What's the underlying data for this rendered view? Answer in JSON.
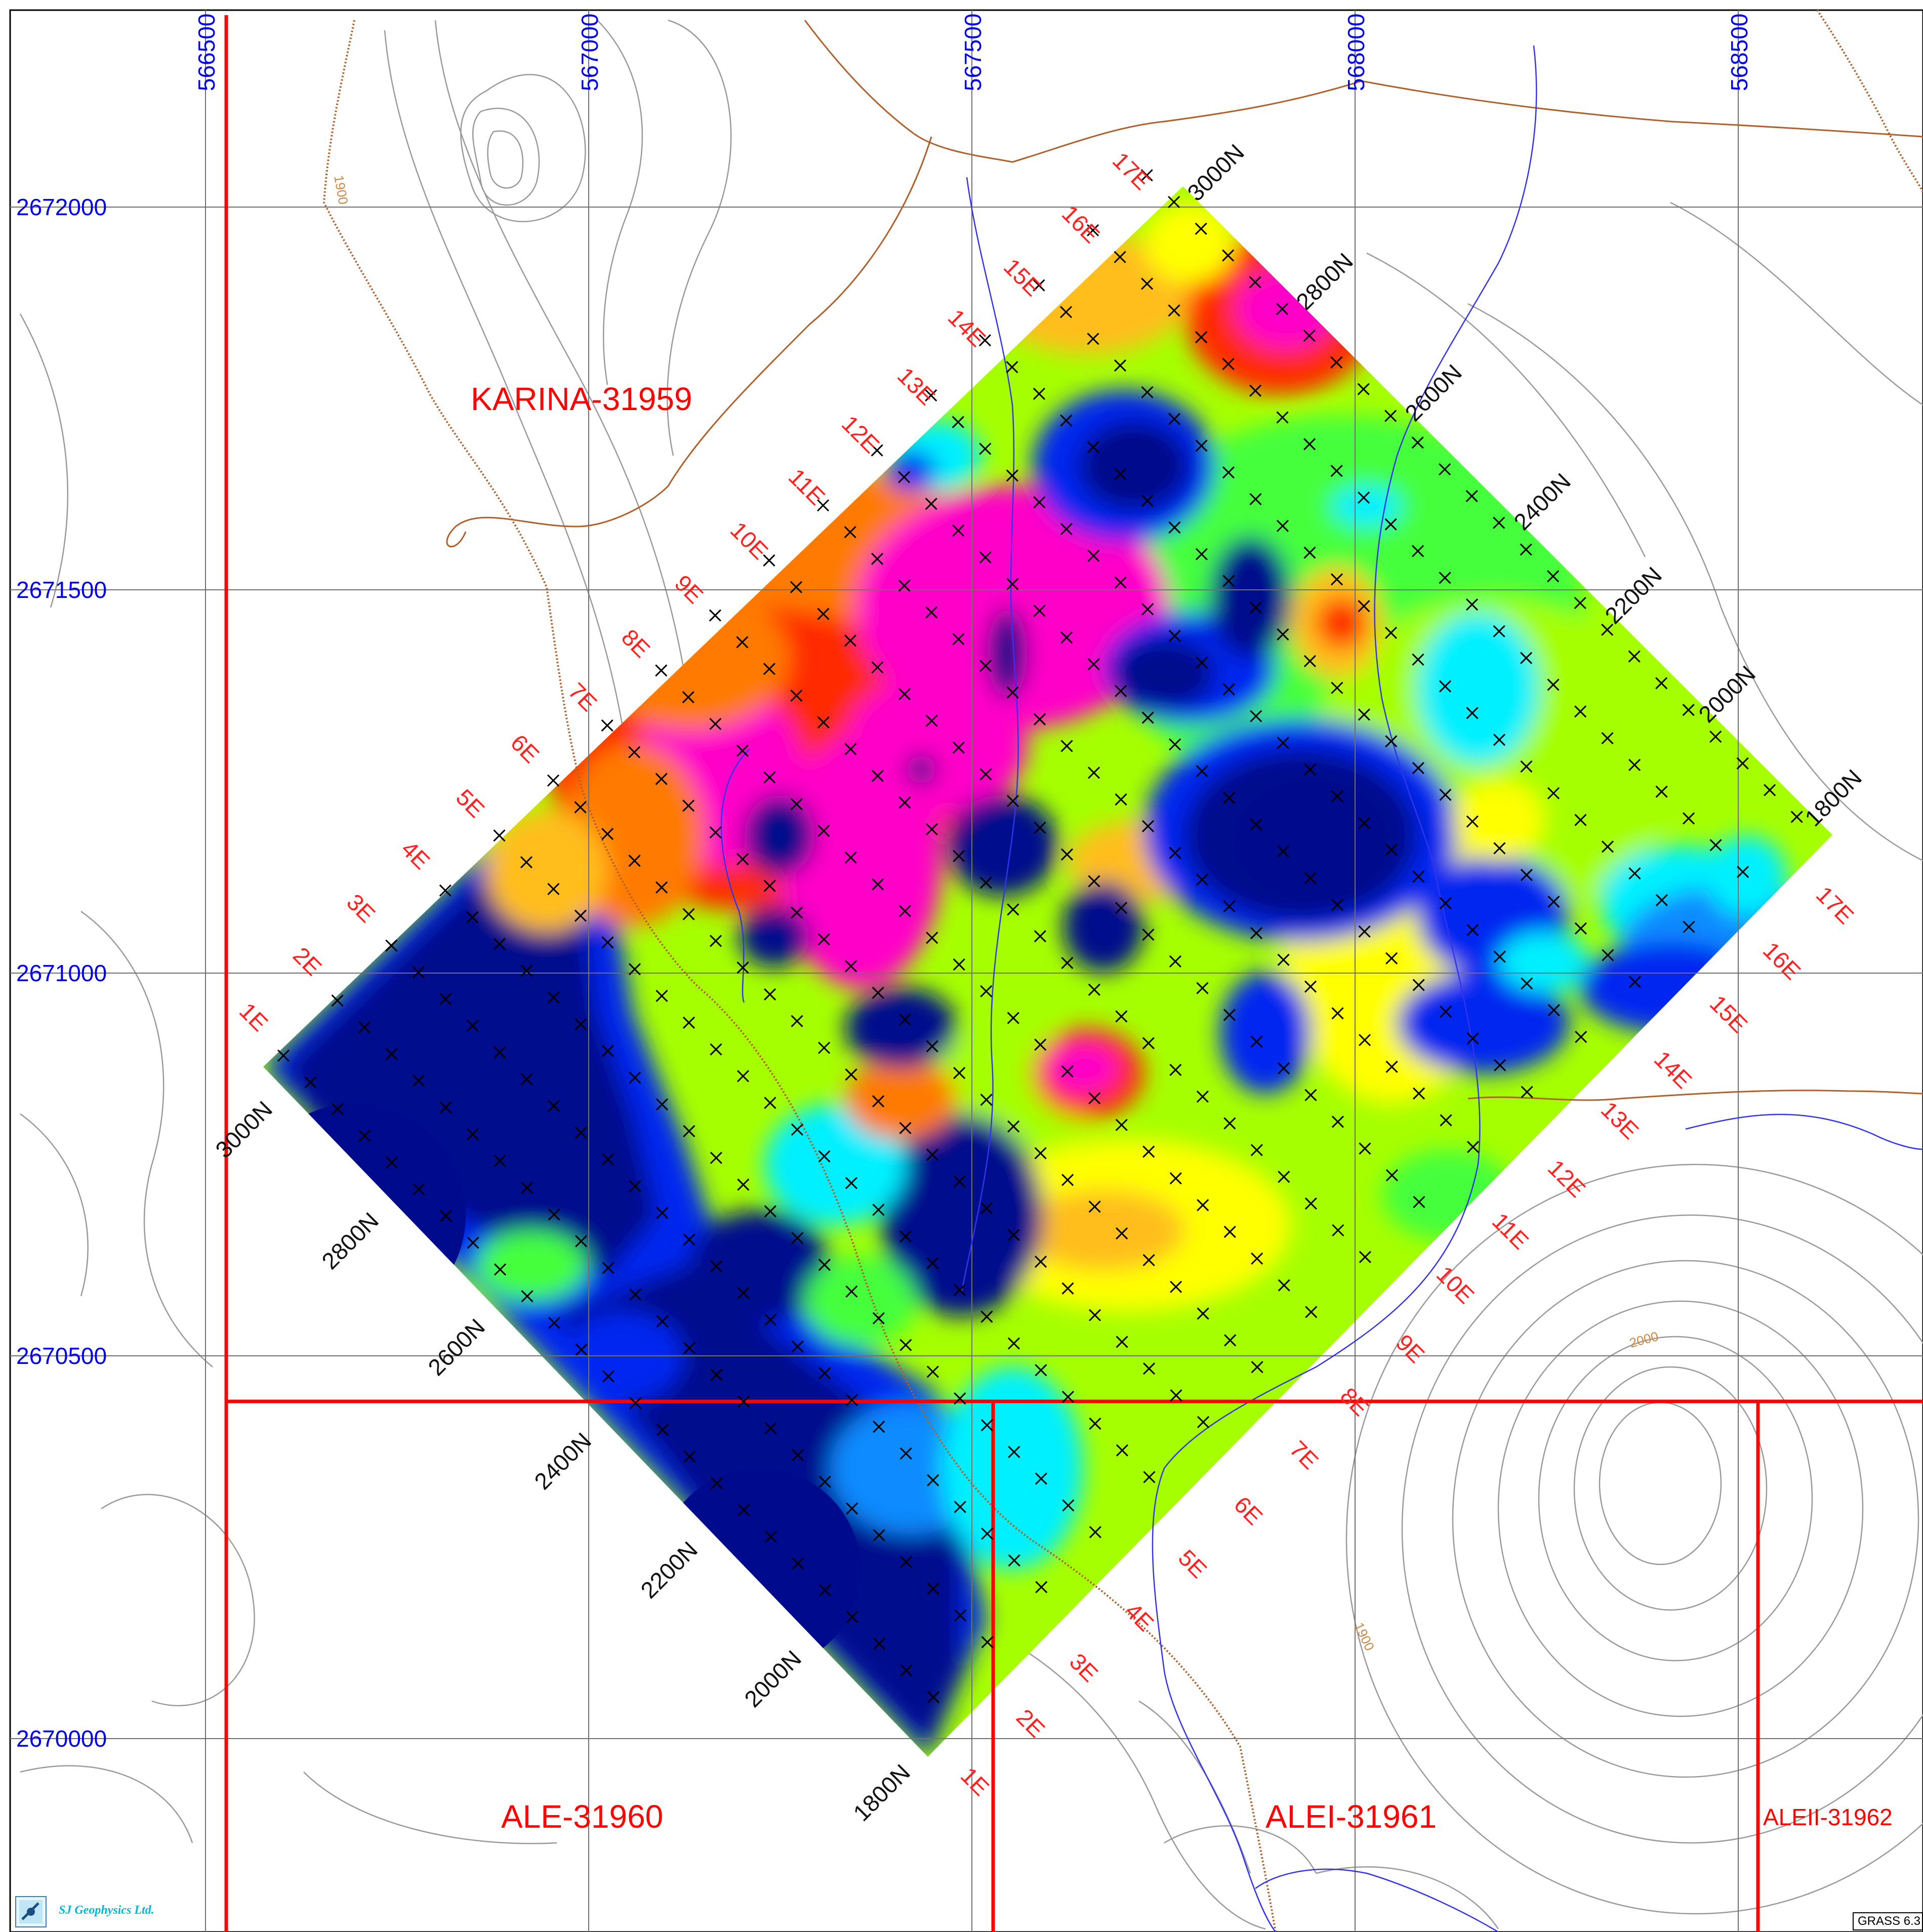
{
  "map": {
    "easting_labels": [
      "566500",
      "567000",
      "567500",
      "568000",
      "568500"
    ],
    "northing_labels": [
      "2672000",
      "2671500",
      "2671000",
      "2670500",
      "2670000"
    ],
    "claims": [
      {
        "name": "KARINA-31959"
      },
      {
        "name": "ALE-31960"
      },
      {
        "name": "ALEI-31961"
      },
      {
        "name": "ALEII-31962"
      }
    ],
    "line_labels": [
      "1E",
      "2E",
      "3E",
      "4E",
      "5E",
      "6E",
      "7E",
      "8E",
      "9E",
      "10E",
      "11E",
      "12E",
      "13E",
      "14E",
      "15E",
      "16E",
      "17E"
    ],
    "station_labels": [
      "3000N",
      "2800N",
      "2600N",
      "2400N",
      "2200N",
      "2000N",
      "1800N"
    ],
    "contour_labels": [
      "1900",
      "2000",
      "1900"
    ],
    "colors": {
      "grid": "#707070",
      "claim_boundary": "#ff0000",
      "road": "#b0602a",
      "stream": "#3333ee",
      "contour": "#9a9a9a",
      "easting_label": "#0000ee",
      "line_label": "#ff2020",
      "scale": [
        "#000a8c",
        "#0026f0",
        "#0f8bff",
        "#00f0ff",
        "#45ff3c",
        "#a6ff00",
        "#ffff00",
        "#ffbe1a",
        "#ff7a00",
        "#ff2a00",
        "#ff00c8"
      ]
    }
  },
  "footer": {
    "logo_text": "SJ Geophysics Ltd.",
    "software_label": "GRASS 6.3"
  }
}
